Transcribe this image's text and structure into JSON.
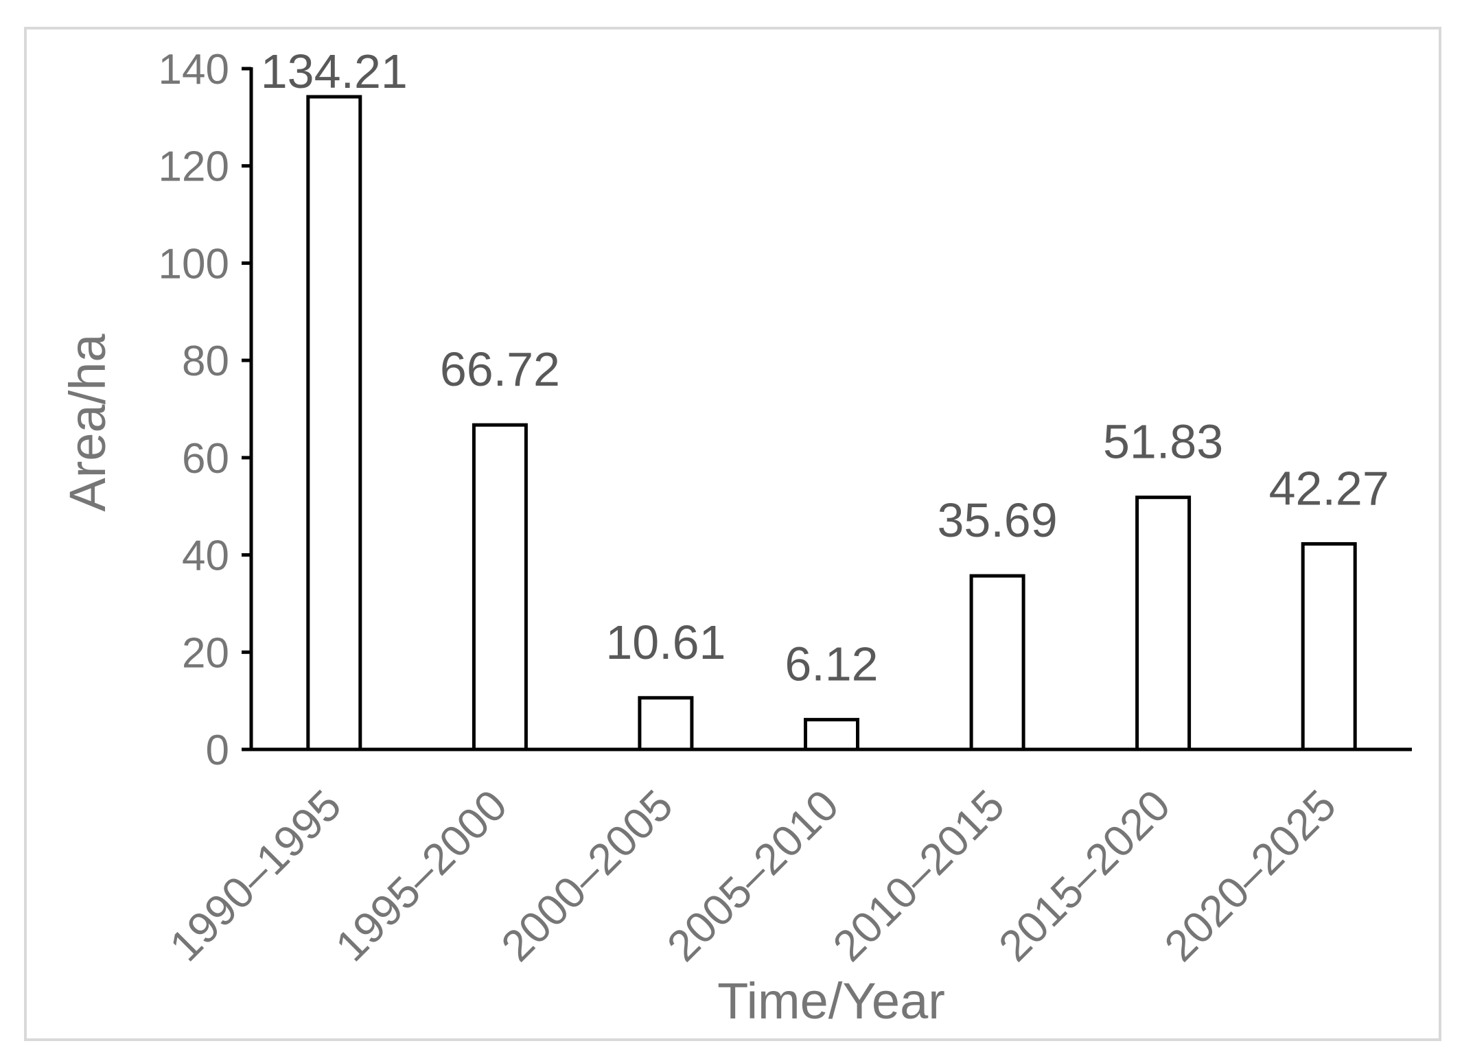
{
  "chart_data": {
    "type": "bar",
    "title": "",
    "categories": [
      "1990–1995",
      "1995–2000",
      "2000–2005",
      "2005–2010",
      "2010–2015",
      "2015–2020",
      "2020–2025"
    ],
    "values": [
      134.21,
      66.72,
      10.61,
      6.12,
      35.69,
      51.83,
      42.27
    ],
    "data_labels": true,
    "xlabel": "Time/Year",
    "ylabel": "Area/ha",
    "ylim": [
      0,
      140
    ],
    "yticks": [
      0,
      20,
      40,
      60,
      80,
      100,
      120,
      140
    ],
    "grid": false,
    "colors": {
      "bar_fill": "#ffffff",
      "bar_stroke": "#000000",
      "axis": "#000000",
      "border": "#d9d9d9",
      "label": "#767676",
      "data_label": "#595959"
    }
  }
}
